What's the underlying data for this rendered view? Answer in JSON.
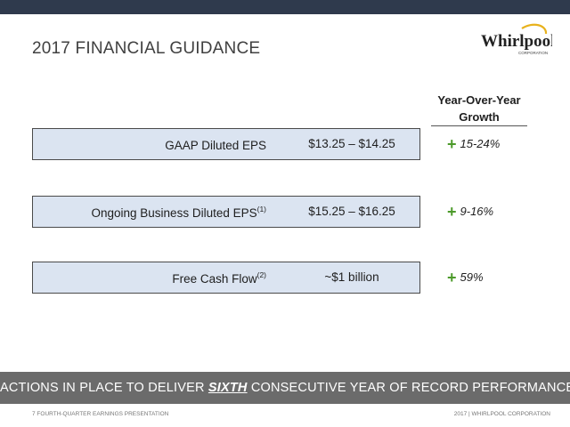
{
  "slide": {
    "title": "2017 FINANCIAL GUIDANCE",
    "logo": {
      "wordmark": "Whirlpool",
      "subtext": "CORPORATION"
    },
    "column_header": {
      "line1": "Year-Over-Year",
      "line2": "Growth"
    },
    "rows": [
      {
        "label": "GAAP Diluted EPS",
        "footnote": "",
        "value": "$13.25 – $14.25",
        "growth_sign": "+",
        "growth": "15-24%"
      },
      {
        "label": "Ongoing Business Diluted EPS",
        "footnote": "(1)",
        "value": "$15.25 – $16.25",
        "growth_sign": "+",
        "growth": "9-16%"
      },
      {
        "label": "Free Cash Flow",
        "footnote": "(2)",
        "value": "~$1 billion",
        "growth_sign": "+",
        "growth": "59%"
      }
    ],
    "banner": {
      "before": "ACTIONS IN PLACE TO DELIVER ",
      "emphasis": "SIXTH",
      "after": " CONSECUTIVE YEAR OF RECORD PERFORMANCE"
    },
    "footer": {
      "left": "7   FOURTH-QUARTER EARNINGS PRESENTATION",
      "right": "2017  |  WHIRLPOOL CORPORATION"
    }
  },
  "colors": {
    "top_bar": "#2f3a4d",
    "row_fill": "#dbe4f1",
    "plus_green": "#4c9a2a",
    "banner_gray": "#6b6b6b",
    "logo_gold": "#e8b21d"
  }
}
